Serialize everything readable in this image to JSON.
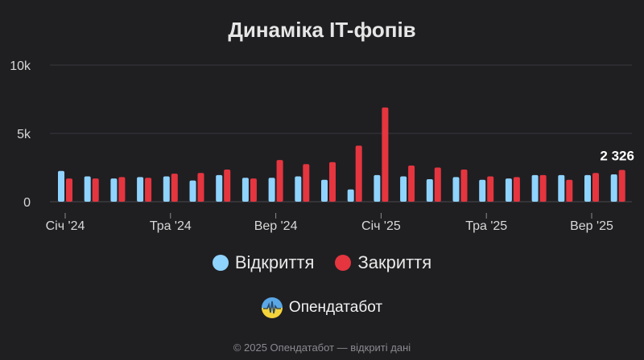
{
  "chart_data": {
    "type": "bar",
    "title": "Динаміка IT-фопів",
    "y_ticks": [
      "10k",
      "5k",
      "0"
    ],
    "ylim": [
      0,
      10000
    ],
    "grid": true,
    "legend_position": "bottom",
    "categories": [
      "2024-01",
      "2024-02",
      "2024-03",
      "2024-04",
      "2024-05",
      "2024-06",
      "2024-07",
      "2024-08",
      "2024-09",
      "2024-10",
      "2024-11",
      "2024-12",
      "2025-01",
      "2025-02",
      "2025-03",
      "2025-04",
      "2025-05",
      "2025-06",
      "2025-07",
      "2025-08",
      "2025-09",
      "2025-10"
    ],
    "x_tick_labels": [
      {
        "index": 0,
        "label": "Січ '24"
      },
      {
        "index": 4,
        "label": "Тра '24"
      },
      {
        "index": 8,
        "label": "Вер '24"
      },
      {
        "index": 12,
        "label": "Січ '25"
      },
      {
        "index": 16,
        "label": "Тра '25"
      },
      {
        "index": 20,
        "label": "Вер '25"
      }
    ],
    "series": [
      {
        "name": "Відкриття",
        "color": "#8fd3ff",
        "values": [
          2250,
          1850,
          1700,
          1800,
          1850,
          1550,
          1950,
          1750,
          1750,
          1850,
          1600,
          900,
          1950,
          1850,
          1650,
          1800,
          1600,
          1700,
          1950,
          1950,
          1950,
          2000
        ]
      },
      {
        "name": "Закриття",
        "color": "#e5353f",
        "values": [
          1700,
          1700,
          1800,
          1750,
          2050,
          2100,
          2350,
          1700,
          3050,
          2750,
          2900,
          4100,
          6900,
          2650,
          2500,
          2350,
          1850,
          1800,
          1950,
          1600,
          2100,
          2326
        ]
      }
    ],
    "annotation": {
      "series": 1,
      "index": 21,
      "text": "2 326"
    }
  },
  "brand": {
    "name": "Опендатабот",
    "logo_icon": "opendatabot-logo-icon"
  },
  "footer": "© 2025 Опендатабот — відкриті дані"
}
